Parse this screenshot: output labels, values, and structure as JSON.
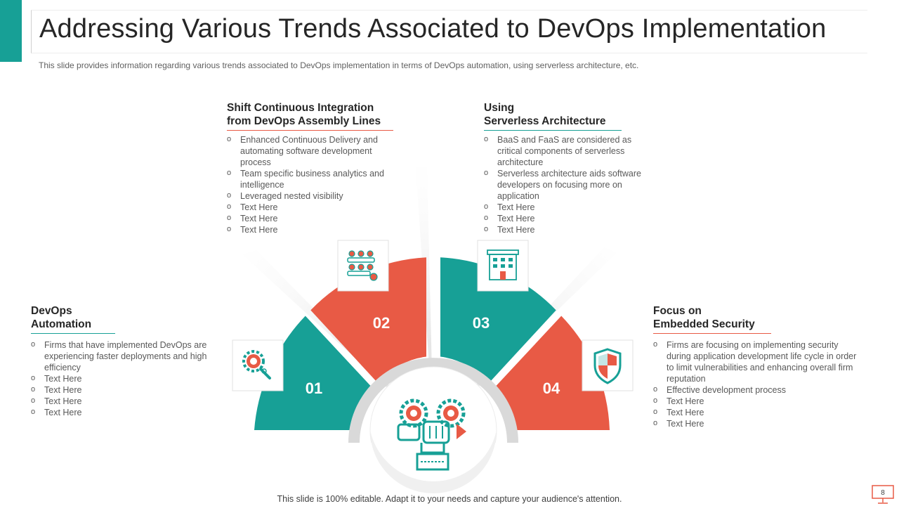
{
  "header": {
    "title": "Addressing Various Trends Associated to DevOps Implementation",
    "subtitle": "This slide provides information regarding various trends associated to DevOps implementation in terms of DevOps automation, using serverless architecture, etc."
  },
  "sections": [
    {
      "title_line1": "DevOps",
      "title_line2": "Automation",
      "bullets": [
        "Firms that have implemented DevOps are experiencing faster deployments and high efficiency",
        "Text Here",
        "Text Here",
        "Text Here",
        "Text Here"
      ]
    },
    {
      "title_line1": "Shift Continuous Integration",
      "title_line2": "from DevOps Assembly Lines",
      "bullets": [
        "Enhanced Continuous Delivery and automating software development process",
        "Team specific business analytics and intelligence",
        "Leveraged  nested visibility",
        "Text Here",
        "Text Here",
        "Text Here"
      ]
    },
    {
      "title_line1": "Using",
      "title_line2": "Serverless Architecture",
      "bullets": [
        "BaaS and FaaS are considered as critical components of serverless architecture",
        "Serverless architecture aids software developers  on focusing more on application",
        "Text Here",
        "Text Here",
        "Text Here"
      ]
    },
    {
      "title_line1": "Focus on",
      "title_line2": "Embedded Security",
      "bullets": [
        "Firms are focusing on implementing security during application development  life cycle in order to limit vulnerabilities  and enhancing overall  firm reputation",
        "Effective development  process",
        "Text Here",
        "Text Here",
        "Text Here"
      ]
    }
  ],
  "segments": [
    {
      "number": "01",
      "icon": "gear-search-icon",
      "color": "#17a096"
    },
    {
      "number": "02",
      "icon": "team-icon",
      "color": "#e85a45"
    },
    {
      "number": "03",
      "icon": "building-icon",
      "color": "#17a096"
    },
    {
      "number": "04",
      "icon": "shield-icon",
      "color": "#e85a45"
    }
  ],
  "center_icon": "hand-gears-icon",
  "footer": {
    "text": "This slide is 100% editable. Adapt it to your needs and capture your audience's attention."
  },
  "page": {
    "number": "8"
  },
  "colors": {
    "teal": "#17a096",
    "red": "#e85a45"
  }
}
